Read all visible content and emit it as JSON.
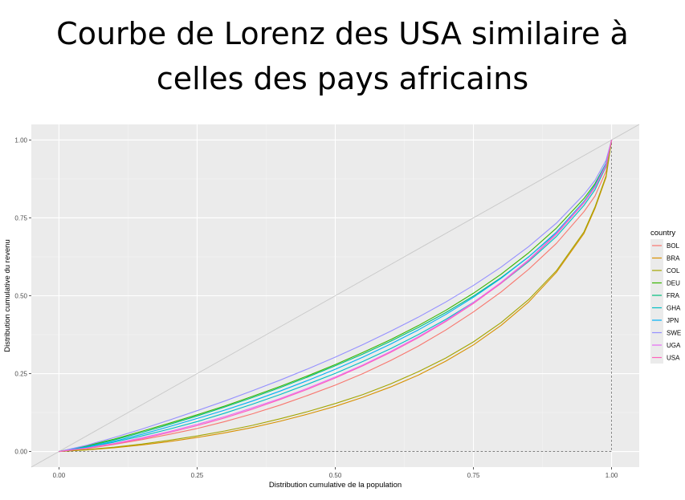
{
  "slide": {
    "title_line1": "Courbe de Lorenz des USA similaire à",
    "title_line2": "celles des pays africains"
  },
  "chart_data": {
    "type": "line",
    "title": "Courbe de Lorenz des USA similaire à celles des pays africains",
    "xlabel": "Distribution cumulative de la population",
    "ylabel": "Distribution cumulative du revenu",
    "xlim": [
      -0.05,
      1.05
    ],
    "ylim": [
      -0.05,
      1.05
    ],
    "x_ticks": [
      "0.00",
      "0.25",
      "0.50",
      "0.75",
      "1.00"
    ],
    "y_ticks": [
      "0.00",
      "0.25",
      "0.50",
      "0.75",
      "1.00"
    ],
    "grid": true,
    "legend_title": "country",
    "legend_position": "right",
    "reference_line": "equality diagonal",
    "x": [
      0,
      0.05,
      0.1,
      0.15,
      0.2,
      0.25,
      0.3,
      0.35,
      0.4,
      0.45,
      0.5,
      0.55,
      0.6,
      0.65,
      0.7,
      0.75,
      0.8,
      0.85,
      0.9,
      0.95,
      0.97,
      0.99,
      1.0
    ],
    "series": [
      {
        "name": "BOL",
        "color": "#F8766D",
        "values": [
          0,
          0.009,
          0.023,
          0.038,
          0.055,
          0.074,
          0.096,
          0.121,
          0.149,
          0.18,
          0.213,
          0.25,
          0.292,
          0.338,
          0.39,
          0.448,
          0.512,
          0.585,
          0.668,
          0.77,
          0.82,
          0.9,
          1.0
        ]
      },
      {
        "name": "BRA",
        "color": "#D89000",
        "values": [
          0,
          0.005,
          0.012,
          0.021,
          0.032,
          0.045,
          0.06,
          0.077,
          0.097,
          0.12,
          0.145,
          0.174,
          0.207,
          0.245,
          0.29,
          0.342,
          0.405,
          0.48,
          0.575,
          0.7,
          0.78,
          0.88,
          1.0
        ]
      },
      {
        "name": "COL",
        "color": "#A3A500",
        "values": [
          0,
          0.006,
          0.014,
          0.024,
          0.036,
          0.05,
          0.066,
          0.084,
          0.105,
          0.128,
          0.154,
          0.183,
          0.217,
          0.256,
          0.3,
          0.352,
          0.414,
          0.488,
          0.58,
          0.705,
          0.785,
          0.885,
          1.0
        ]
      },
      {
        "name": "DEU",
        "color": "#39B600",
        "values": [
          0,
          0.018,
          0.04,
          0.065,
          0.091,
          0.118,
          0.146,
          0.177,
          0.209,
          0.243,
          0.279,
          0.318,
          0.359,
          0.404,
          0.453,
          0.508,
          0.569,
          0.638,
          0.717,
          0.812,
          0.86,
          0.925,
          1.0
        ]
      },
      {
        "name": "FRA",
        "color": "#00BF7D",
        "values": [
          0,
          0.016,
          0.037,
          0.061,
          0.087,
          0.114,
          0.143,
          0.173,
          0.205,
          0.239,
          0.275,
          0.313,
          0.354,
          0.398,
          0.446,
          0.499,
          0.558,
          0.625,
          0.702,
          0.8,
          0.85,
          0.92,
          1.0
        ]
      },
      {
        "name": "GHA",
        "color": "#00BFC4",
        "values": [
          0,
          0.013,
          0.03,
          0.05,
          0.072,
          0.096,
          0.123,
          0.152,
          0.183,
          0.216,
          0.251,
          0.289,
          0.33,
          0.375,
          0.424,
          0.479,
          0.54,
          0.61,
          0.69,
          0.79,
          0.84,
          0.915,
          1.0
        ]
      },
      {
        "name": "JPN",
        "color": "#00B0F6",
        "values": [
          0,
          0.014,
          0.033,
          0.055,
          0.08,
          0.106,
          0.133,
          0.162,
          0.194,
          0.228,
          0.264,
          0.303,
          0.345,
          0.39,
          0.44,
          0.495,
          0.556,
          0.625,
          0.704,
          0.803,
          0.855,
          0.925,
          1.0
        ]
      },
      {
        "name": "SWE",
        "color": "#9590FF",
        "values": [
          0,
          0.02,
          0.045,
          0.072,
          0.101,
          0.131,
          0.162,
          0.195,
          0.229,
          0.265,
          0.303,
          0.343,
          0.386,
          0.431,
          0.48,
          0.533,
          0.592,
          0.658,
          0.733,
          0.825,
          0.87,
          0.935,
          1.0
        ]
      },
      {
        "name": "UGA",
        "color": "#E76BF3",
        "values": [
          0,
          0.011,
          0.026,
          0.044,
          0.064,
          0.087,
          0.112,
          0.14,
          0.17,
          0.203,
          0.239,
          0.278,
          0.321,
          0.368,
          0.42,
          0.478,
          0.543,
          0.616,
          0.7,
          0.8,
          0.85,
          0.92,
          1.0
        ]
      },
      {
        "name": "USA",
        "color": "#FF62BC",
        "values": [
          0,
          0.01,
          0.024,
          0.041,
          0.061,
          0.083,
          0.108,
          0.136,
          0.167,
          0.2,
          0.236,
          0.275,
          0.318,
          0.365,
          0.417,
          0.475,
          0.54,
          0.613,
          0.697,
          0.798,
          0.848,
          0.918,
          1.0
        ]
      }
    ]
  }
}
